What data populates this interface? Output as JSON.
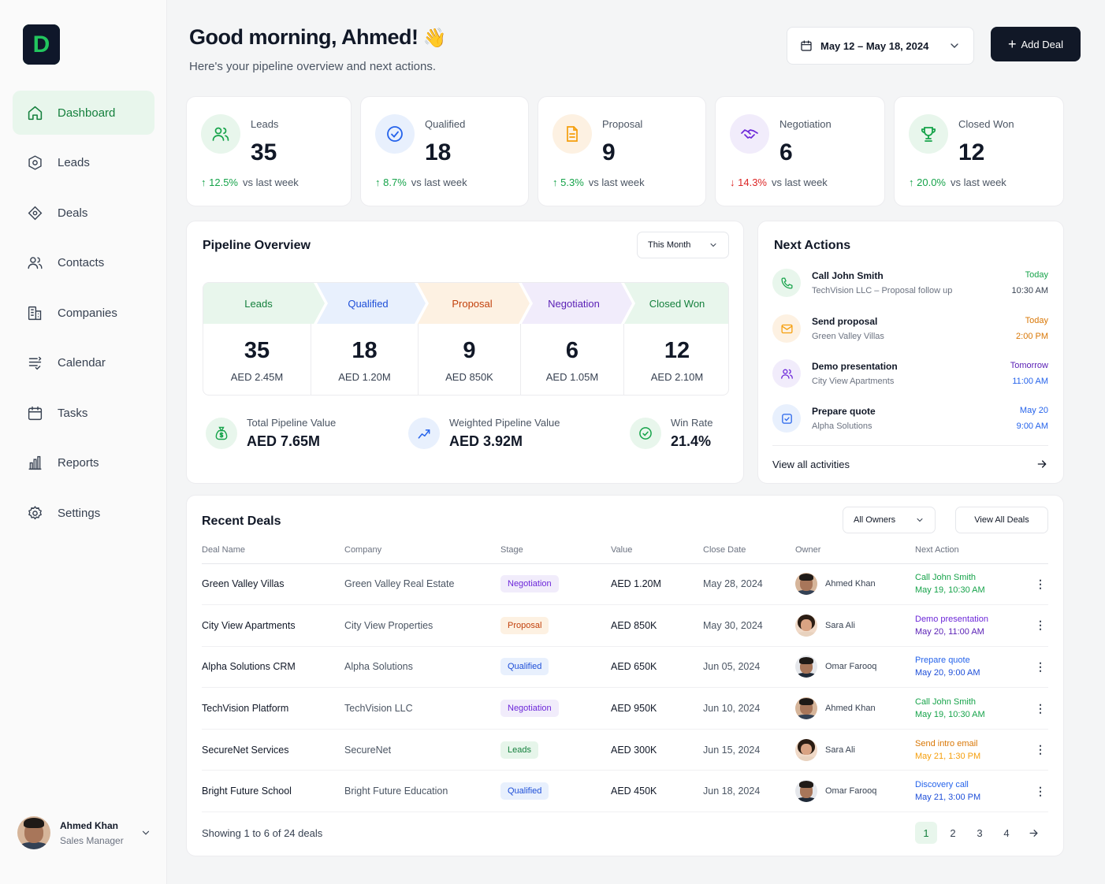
{
  "brand": {
    "logo_letter": "D"
  },
  "sidebar": {
    "items": [
      {
        "label": "Dashboard",
        "icon": "home-icon"
      },
      {
        "label": "Leads",
        "icon": "target-icon"
      },
      {
        "label": "Deals",
        "icon": "deals-icon"
      },
      {
        "label": "Contacts",
        "icon": "users-icon"
      },
      {
        "label": "Companies",
        "icon": "building-icon"
      },
      {
        "label": "Calendar",
        "icon": "calendar-list-icon"
      },
      {
        "label": "Tasks",
        "icon": "calendar-icon"
      },
      {
        "label": "Reports",
        "icon": "bar-chart-icon"
      },
      {
        "label": "Settings",
        "icon": "gear-icon"
      }
    ],
    "active": "Dashboard",
    "user": {
      "name": "Ahmed Khan",
      "role": "Sales Manager"
    }
  },
  "header": {
    "greeting": "Good morning, Ahmed!",
    "wave": "👋",
    "subtitle": "Here's your pipeline overview and next actions.",
    "date_range": "May 12 – May 18, 2024",
    "add_deal": "Add Deal"
  },
  "kpis": [
    {
      "label": "Leads",
      "value": "35",
      "change": "12.5%",
      "direction": "up",
      "period": "vs last week",
      "color": "#16a34a"
    },
    {
      "label": "Qualified",
      "value": "18",
      "change": "8.7%",
      "direction": "up",
      "period": "vs last week",
      "color": "#2563eb"
    },
    {
      "label": "Proposal",
      "value": "9",
      "change": "5.3%",
      "direction": "up",
      "period": "vs last week",
      "color": "#f59e0b"
    },
    {
      "label": "Negotiation",
      "value": "6",
      "change": "14.3%",
      "direction": "down",
      "period": "vs last week",
      "color": "#6d28d9"
    },
    {
      "label": "Closed Won",
      "value": "12",
      "change": "20.0%",
      "direction": "up",
      "period": "vs last week",
      "color": "#16a34a"
    }
  ],
  "pipeline": {
    "title": "Pipeline Overview",
    "filter": "This Month",
    "stages": [
      {
        "name": "Leads",
        "count": "35",
        "value": "AED 2.45M"
      },
      {
        "name": "Qualified",
        "count": "18",
        "value": "AED 1.20M"
      },
      {
        "name": "Proposal",
        "count": "9",
        "value": "AED 850K"
      },
      {
        "name": "Negotiation",
        "count": "6",
        "value": "AED 1.05M"
      },
      {
        "name": "Closed Won",
        "count": "12",
        "value": "AED 2.10M"
      }
    ],
    "summary": [
      {
        "label": "Total Pipeline Value",
        "value": "AED 7.65M"
      },
      {
        "label": "Weighted Pipeline Value",
        "value": "AED 3.92M"
      },
      {
        "label": "Win Rate",
        "value": "21.4%"
      }
    ]
  },
  "next_actions": {
    "title": "Next Actions",
    "items": [
      {
        "title": "Call John Smith",
        "subtitle": "TechVision LLC – Proposal follow up",
        "day": "Today",
        "time": "10:30 AM",
        "icon": "phone-icon"
      },
      {
        "title": "Send proposal",
        "subtitle": "Green Valley Villas",
        "day": "Today",
        "time": "2:00 PM",
        "icon": "mail-icon"
      },
      {
        "title": "Demo presentation",
        "subtitle": "City View Apartments",
        "day": "Tomorrow",
        "time": "11:00 AM",
        "icon": "users-icon"
      },
      {
        "title": "Prepare quote",
        "subtitle": "Alpha Solutions",
        "day": "May 20",
        "time": "9:00 AM",
        "icon": "check-square-icon"
      }
    ],
    "view_all": "View all activities"
  },
  "recent_deals": {
    "title": "Recent Deals",
    "owner_filter": "All Owners",
    "view_all": "View All Deals",
    "columns": [
      "Deal Name",
      "Company",
      "Stage",
      "Value",
      "Close Date",
      "Owner",
      "Next Action"
    ],
    "rows": [
      {
        "deal": "Green Valley Villas",
        "company": "Green Valley Real Estate",
        "stage": "Negotiation",
        "value": "AED 1.20M",
        "close": "May 28, 2024",
        "owner": "Ahmed Khan",
        "action": "Call John Smith",
        "action_time": "May 19, 10:30 AM"
      },
      {
        "deal": "City View Apartments",
        "company": "City View Properties",
        "stage": "Proposal",
        "value": "AED 850K",
        "close": "May 30, 2024",
        "owner": "Sara Ali",
        "action": "Demo presentation",
        "action_time": "May 20, 11:00 AM"
      },
      {
        "deal": "Alpha Solutions CRM",
        "company": "Alpha Solutions",
        "stage": "Qualified",
        "value": "AED 650K",
        "close": "Jun 05, 2024",
        "owner": "Omar Farooq",
        "action": "Prepare quote",
        "action_time": "May 20, 9:00 AM"
      },
      {
        "deal": "TechVision Platform",
        "company": "TechVision LLC",
        "stage": "Negotiation",
        "value": "AED 950K",
        "close": "Jun 10, 2024",
        "owner": "Ahmed Khan",
        "action": "Call John Smith",
        "action_time": "May 19, 10:30 AM"
      },
      {
        "deal": "SecureNet Services",
        "company": "SecureNet",
        "stage": "Leads",
        "value": "AED 300K",
        "close": "Jun 15, 2024",
        "owner": "Sara Ali",
        "action": "Send intro email",
        "action_time": "May 21, 1:30 PM"
      },
      {
        "deal": "Bright Future School",
        "company": "Bright Future Education",
        "stage": "Qualified",
        "value": "AED 450K",
        "close": "Jun 18, 2024",
        "owner": "Omar Farooq",
        "action": "Discovery call",
        "action_time": "May 21, 3:00 PM"
      }
    ],
    "footer": "Showing 1 to 6 of 24 deals",
    "pages": [
      "1",
      "2",
      "3",
      "4"
    ],
    "current_page": "1"
  }
}
